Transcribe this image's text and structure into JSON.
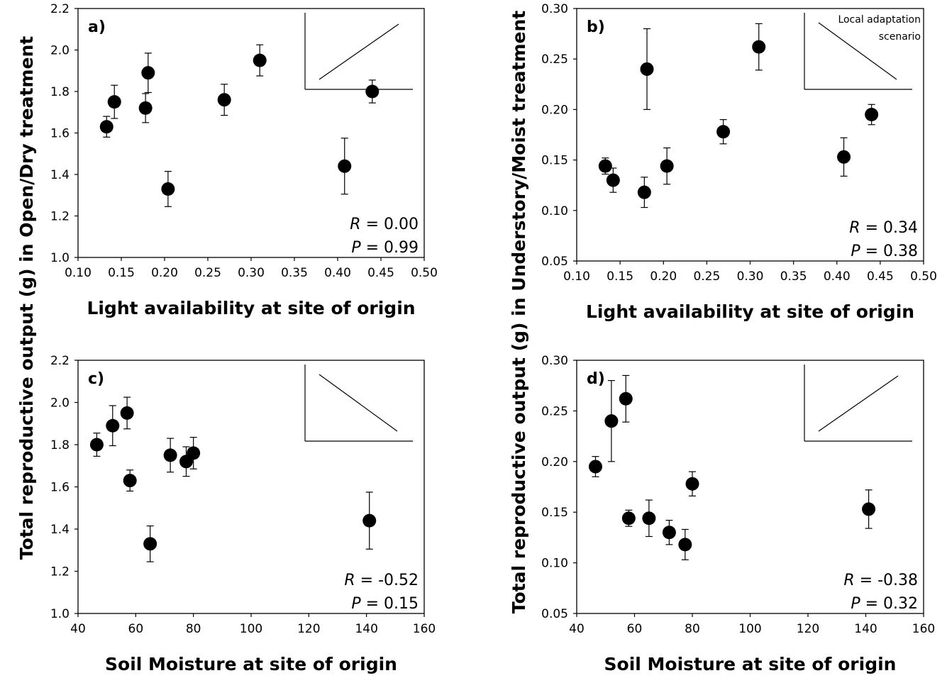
{
  "figure": {
    "ylabel_top": "Total reproductive output (g) in Open/Dry treatment",
    "ylabel_bottom": "Total reproductive output (g) in Understory/Moist treatment"
  },
  "chart_data": [
    {
      "id": "a",
      "type": "scatter",
      "panel_label": "a)",
      "xlabel": "Light availability at site of origin",
      "ylabel": "Total reproductive output (g) in Open/Dry treatment",
      "xlim": [
        0.1,
        0.5
      ],
      "ylim": [
        1.0,
        2.2
      ],
      "xticks": [
        "0.10",
        "0.15",
        "0.20",
        "0.25",
        "0.30",
        "0.35",
        "0.40",
        "0.45",
        "0.50"
      ],
      "yticks": [
        "1.0",
        "1.2",
        "1.4",
        "1.6",
        "1.8",
        "2.0",
        "2.2"
      ],
      "points": [
        {
          "x": 0.133,
          "y": 1.63,
          "err": 0.05
        },
        {
          "x": 0.142,
          "y": 1.75,
          "err": 0.08
        },
        {
          "x": 0.178,
          "y": 1.72,
          "err": 0.07
        },
        {
          "x": 0.181,
          "y": 1.89,
          "err": 0.095
        },
        {
          "x": 0.204,
          "y": 1.33,
          "err": 0.085
        },
        {
          "x": 0.269,
          "y": 1.76,
          "err": 0.075
        },
        {
          "x": 0.31,
          "y": 1.95,
          "err": 0.075
        },
        {
          "x": 0.408,
          "y": 1.44,
          "err": 0.135
        },
        {
          "x": 0.44,
          "y": 1.8,
          "err": 0.055
        }
      ],
      "stats": {
        "r_key": "R",
        "r_value": " = 0.00",
        "p_key": "P",
        "p_value": " = 0.99"
      },
      "inset": {
        "trend": "positive",
        "text": []
      }
    },
    {
      "id": "b",
      "type": "scatter",
      "panel_label": "b)",
      "xlabel": "Light availability at site of origin",
      "ylabel": "Total reproductive output (g) in Understory/Moist treatment",
      "xlim": [
        0.1,
        0.5
      ],
      "ylim": [
        0.05,
        0.3
      ],
      "xticks": [
        "0.10",
        "0.15",
        "0.20",
        "0.25",
        "0.30",
        "0.35",
        "0.40",
        "0.45",
        "0.50"
      ],
      "yticks": [
        "0.05",
        "0.10",
        "0.15",
        "0.20",
        "0.25",
        "0.30"
      ],
      "points": [
        {
          "x": 0.133,
          "y": 0.144,
          "err": 0.008
        },
        {
          "x": 0.142,
          "y": 0.13,
          "err": 0.012
        },
        {
          "x": 0.178,
          "y": 0.118,
          "err": 0.015
        },
        {
          "x": 0.181,
          "y": 0.24,
          "err": 0.04
        },
        {
          "x": 0.204,
          "y": 0.144,
          "err": 0.018
        },
        {
          "x": 0.269,
          "y": 0.178,
          "err": 0.012
        },
        {
          "x": 0.31,
          "y": 0.262,
          "err": 0.023
        },
        {
          "x": 0.408,
          "y": 0.153,
          "err": 0.019
        },
        {
          "x": 0.44,
          "y": 0.195,
          "err": 0.01
        }
      ],
      "stats": {
        "r_key": "R",
        "r_value": " = 0.34",
        "p_key": "P",
        "p_value": " = 0.38"
      },
      "inset": {
        "trend": "negative",
        "text": [
          "Local adaptation",
          "scenario"
        ]
      }
    },
    {
      "id": "c",
      "type": "scatter",
      "panel_label": "c)",
      "xlabel": "Soil Moisture at site of origin",
      "ylabel": "Total reproductive output (g) in Open/Dry treatment",
      "xlim": [
        40,
        160
      ],
      "ylim": [
        1.0,
        2.2
      ],
      "xticks": [
        "40",
        "60",
        "80",
        "100",
        "120",
        "140",
        "160"
      ],
      "yticks": [
        "1.0",
        "1.2",
        "1.4",
        "1.6",
        "1.8",
        "2.0",
        "2.2"
      ],
      "points": [
        {
          "x": 46.5,
          "y": 1.8,
          "err": 0.055
        },
        {
          "x": 52.0,
          "y": 1.89,
          "err": 0.095
        },
        {
          "x": 57.0,
          "y": 1.95,
          "err": 0.075
        },
        {
          "x": 58.0,
          "y": 1.63,
          "err": 0.05
        },
        {
          "x": 65.0,
          "y": 1.33,
          "err": 0.085
        },
        {
          "x": 72.0,
          "y": 1.75,
          "err": 0.08
        },
        {
          "x": 77.5,
          "y": 1.72,
          "err": 0.07
        },
        {
          "x": 80.0,
          "y": 1.76,
          "err": 0.075
        },
        {
          "x": 141.0,
          "y": 1.44,
          "err": 0.135
        }
      ],
      "stats": {
        "r_key": "R",
        "r_value": " = -0.52",
        "p_key": "P",
        "p_value": "  = 0.15"
      },
      "inset": {
        "trend": "negative",
        "text": []
      }
    },
    {
      "id": "d",
      "type": "scatter",
      "panel_label": "d)",
      "xlabel": "Soil Moisture at site of origin",
      "ylabel": "Total reproductive output (g) in Understory/Moist treatment",
      "xlim": [
        40,
        160
      ],
      "ylim": [
        0.05,
        0.3
      ],
      "xticks": [
        "40",
        "60",
        "80",
        "100",
        "120",
        "140",
        "160"
      ],
      "yticks": [
        "0.05",
        "0.10",
        "0.15",
        "0.20",
        "0.25",
        "0.30"
      ],
      "points": [
        {
          "x": 46.5,
          "y": 0.195,
          "err": 0.01
        },
        {
          "x": 52.0,
          "y": 0.24,
          "err": 0.04
        },
        {
          "x": 57.0,
          "y": 0.262,
          "err": 0.023
        },
        {
          "x": 58.0,
          "y": 0.144,
          "err": 0.008
        },
        {
          "x": 65.0,
          "y": 0.144,
          "err": 0.018
        },
        {
          "x": 72.0,
          "y": 0.13,
          "err": 0.012
        },
        {
          "x": 77.5,
          "y": 0.118,
          "err": 0.015
        },
        {
          "x": 80.0,
          "y": 0.178,
          "err": 0.012
        },
        {
          "x": 141.0,
          "y": 0.153,
          "err": 0.019
        }
      ],
      "stats": {
        "r_key": "R",
        "r_value": " = -0.38",
        "p_key": "P",
        "p_value": "  = 0.32"
      },
      "inset": {
        "trend": "positive",
        "text": []
      }
    }
  ]
}
